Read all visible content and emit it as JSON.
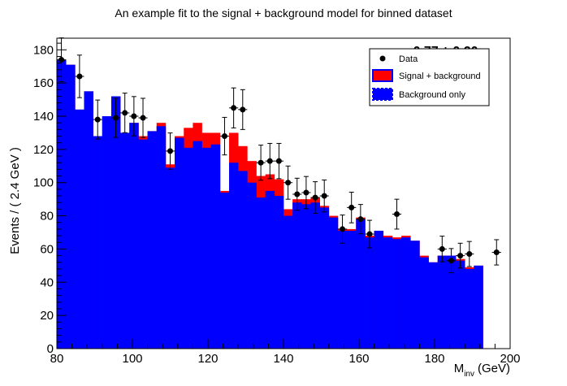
{
  "chart_data": {
    "type": "bar",
    "title": "An example fit to the signal + background model for binned dataset",
    "xlabel_main": "M",
    "xlabel_sub": "inv",
    "xlabel_unit": "(GeV)",
    "ylabel": "Events / ( 2.4 GeV )",
    "xlim": [
      80,
      200
    ],
    "ylim": [
      0,
      187
    ],
    "bin_width": 2.4,
    "x_ticks": [
      80,
      100,
      120,
      140,
      160,
      180,
      200
    ],
    "y_ticks": [
      0,
      20,
      40,
      60,
      80,
      100,
      120,
      140,
      160,
      180
    ],
    "annotation": "mu = -0.77 ± 0.20",
    "legend": {
      "placement": "top-right",
      "entries": [
        {
          "label": "Data",
          "kind": "marker"
        },
        {
          "label": "Signal + background",
          "kind": "fill",
          "color": "#ff0000"
        },
        {
          "label": "Background only",
          "kind": "fill",
          "color": "#0000ff"
        }
      ]
    },
    "series": [
      {
        "name": "Signal + background",
        "color": "#ff0000",
        "values": [
          174,
          171,
          144,
          155,
          128,
          140,
          152,
          130,
          136,
          128,
          131,
          136,
          111,
          128,
          133,
          136,
          130,
          130,
          95,
          130,
          122,
          113,
          104,
          105,
          102,
          84,
          90,
          90,
          91,
          86,
          80,
          72,
          72,
          79,
          68,
          71,
          68,
          67,
          68,
          65,
          56,
          52,
          56,
          56,
          54,
          49,
          50
        ]
      },
      {
        "name": "Background only",
        "color": "#0000ff",
        "values": [
          174,
          171,
          144,
          155,
          128,
          140,
          152,
          130,
          136,
          126,
          131,
          134,
          109,
          127,
          121,
          125,
          121,
          123,
          94,
          112,
          107,
          100,
          91,
          95,
          92,
          80,
          88,
          87,
          88,
          85,
          79,
          71,
          71,
          78,
          67,
          71,
          67,
          66,
          67,
          65,
          55,
          52,
          56,
          56,
          53,
          48,
          50
        ]
      },
      {
        "name": "Data",
        "color": "#000000",
        "x": [
          81.2,
          86.0,
          90.8,
          95.6,
          98.0,
          100.4,
          102.8,
          110.0,
          124.4,
          126.8,
          129.2,
          134.0,
          136.4,
          138.8,
          141.2,
          143.6,
          146.0,
          148.4,
          150.8,
          155.6,
          158.0,
          160.4,
          162.8,
          170.0,
          182.0,
          184.4,
          186.8,
          189.2,
          196.4
        ],
        "values": [
          174,
          164,
          138,
          139,
          142,
          140,
          139,
          119,
          128,
          145,
          144,
          112,
          113,
          113,
          100,
          93,
          94,
          91,
          92,
          72,
          85,
          78,
          69,
          81,
          60,
          53,
          56,
          57,
          58
        ]
      }
    ]
  }
}
